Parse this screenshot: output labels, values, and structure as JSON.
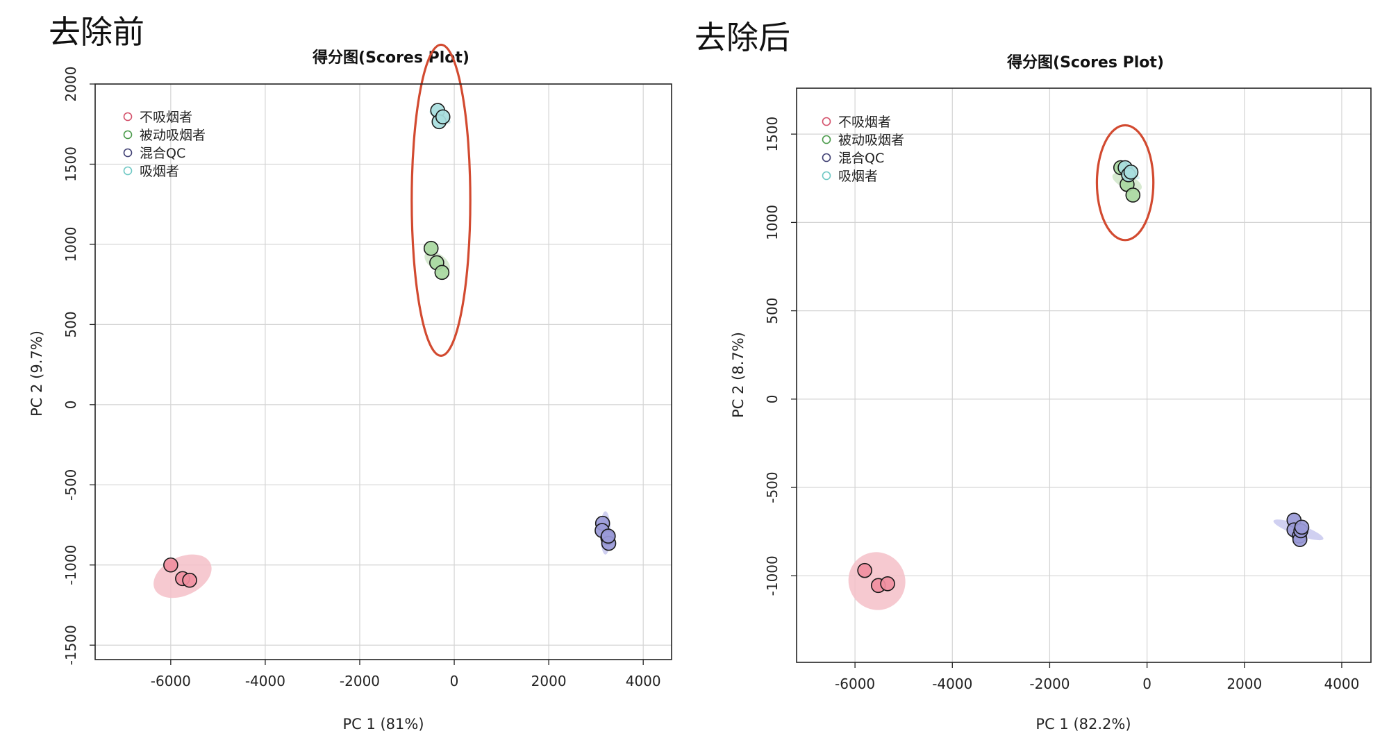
{
  "panels": [
    {
      "header": "去除前",
      "title": "得分图(Scores Plot)",
      "xlabel": "PC 1 (81%)",
      "ylabel": "PC 2 (9.7%)"
    },
    {
      "header": "去除后",
      "title": "得分图(Scores Plot)",
      "xlabel": "PC 1 (82.2%)",
      "ylabel": "PC 2 (8.7%)"
    }
  ],
  "legend": [
    {
      "label": "不吸烟者",
      "color": "#d4506a"
    },
    {
      "label": "被动吸烟者",
      "color": "#4a9a4a"
    },
    {
      "label": "混合QC",
      "color": "#3f3f73"
    },
    {
      "label": "吸烟者",
      "color": "#6ec8c4"
    }
  ],
  "colors": {
    "fills": [
      "#f08fa0",
      "#a8d8a0",
      "#9a9ad8",
      "#a8dede"
    ],
    "ellipse_fills": [
      "#f5c0c8",
      "#cfe5c8",
      "#c8c8ee",
      "#cfeeee"
    ],
    "highlight": "#d24a30",
    "grid": "#d4d4d4"
  },
  "chart_data": [
    {
      "type": "scatter",
      "title": "得分图(Scores Plot)",
      "xlabel": "PC 1 (81%)",
      "ylabel": "PC 2 (9.7%)",
      "xlim": [
        -7600,
        4600
      ],
      "ylim": [
        -1590,
        2000
      ],
      "xticks": [
        -6000,
        -4000,
        -2000,
        0,
        2000,
        4000
      ],
      "yticks": [
        -1500,
        -1000,
        -500,
        0,
        500,
        1000,
        1500,
        2000
      ],
      "grid": true,
      "legend_position": "top-left",
      "series": [
        {
          "name": "不吸烟者",
          "points": [
            [
              -6000,
              -1000
            ],
            [
              -5750,
              -1085
            ],
            [
              -5600,
              -1095
            ]
          ]
        },
        {
          "name": "被动吸烟者",
          "points": [
            [
              -490,
              975
            ],
            [
              -370,
              885
            ],
            [
              -260,
              825
            ]
          ]
        },
        {
          "name": "混合QC",
          "points": [
            [
              3140,
              -740
            ],
            [
              3130,
              -785
            ],
            [
              3250,
              -830
            ],
            [
              3270,
              -865
            ],
            [
              3260,
              -820
            ]
          ]
        },
        {
          "name": "吸烟者",
          "points": [
            [
              -350,
              1835
            ],
            [
              -320,
              1765
            ],
            [
              -240,
              1795
            ]
          ]
        }
      ],
      "ellipses": [
        {
          "series": "不吸烟者",
          "cx": -5750,
          "cy": -1070,
          "rx": 650,
          "ry": 40,
          "angle_deg": -25
        },
        {
          "series": "被动吸烟者",
          "cx": -360,
          "cy": 890,
          "rx": 170,
          "ry": 30,
          "angle_deg": -55
        },
        {
          "series": "混合QC",
          "cx": 3200,
          "cy": -800,
          "rx": 110,
          "ry": 45,
          "angle_deg": 0
        },
        {
          "series": "吸烟者",
          "cx": -300,
          "cy": 1795,
          "rx": 90,
          "ry": 25,
          "angle_deg": -60
        }
      ],
      "highlight_ellipse": {
        "cx": -280,
        "cy": 1275,
        "rx": 620,
        "ry": 970
      }
    },
    {
      "type": "scatter",
      "title": "得分图(Scores Plot)",
      "xlabel": "PC 1 (82.2%)",
      "ylabel": "PC 2 (8.7%)",
      "xlim": [
        -7200,
        4600
      ],
      "ylim": [
        -1490,
        1760
      ],
      "xticks": [
        -6000,
        -4000,
        -2000,
        0,
        2000,
        4000
      ],
      "yticks": [
        -1000,
        -500,
        0,
        500,
        1000,
        1500
      ],
      "grid": true,
      "legend_position": "top-left",
      "series": [
        {
          "name": "不吸烟者",
          "points": [
            [
              -5800,
              -970
            ],
            [
              -5520,
              -1055
            ],
            [
              -5330,
              -1045
            ]
          ]
        },
        {
          "name": "被动吸烟者",
          "points": [
            [
              -540,
              1310
            ],
            [
              -410,
              1215
            ],
            [
              -290,
              1155
            ]
          ]
        },
        {
          "name": "混合QC",
          "points": [
            [
              3020,
              -685
            ],
            [
              3020,
              -740
            ],
            [
              3130,
              -775
            ],
            [
              3140,
              -795
            ],
            [
              3160,
              -745
            ],
            [
              3180,
              -725
            ]
          ]
        },
        {
          "name": "吸烟者",
          "points": [
            [
              -450,
              1310
            ],
            [
              -380,
              1270
            ],
            [
              -330,
              1285
            ]
          ]
        }
      ],
      "ellipses": [
        {
          "series": "不吸烟者",
          "cx": -5550,
          "cy": -1030,
          "rx": 580,
          "ry": 55,
          "angle_deg": -30
        },
        {
          "series": "被动吸烟者",
          "cx": -410,
          "cy": 1230,
          "rx": 140,
          "ry": 30,
          "angle_deg": -65
        },
        {
          "series": "混合QC",
          "cx": 3110,
          "cy": -740,
          "rx": 110,
          "ry": 50,
          "angle_deg": -70
        },
        {
          "series": "吸烟者",
          "cx": -390,
          "cy": 1285,
          "rx": 70,
          "ry": 25,
          "angle_deg": -60
        }
      ],
      "highlight_ellipse": {
        "cx": -450,
        "cy": 1225,
        "rx": 580,
        "ry": 325
      }
    }
  ]
}
